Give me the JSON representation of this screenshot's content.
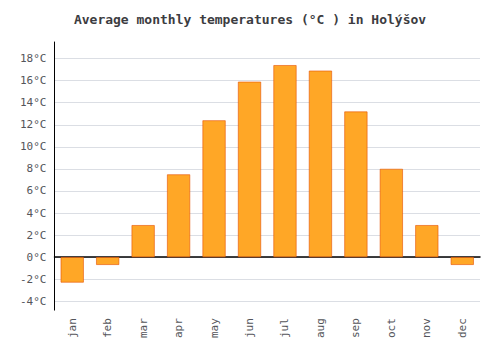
{
  "chart_data": {
    "type": "bar",
    "title": "Average monthly temperatures (°C ) in Holýšov",
    "categories": [
      "jan",
      "feb",
      "mar",
      "apr",
      "may",
      "jun",
      "jul",
      "aug",
      "sep",
      "oct",
      "nov",
      "dec"
    ],
    "values": [
      -2.3,
      -0.7,
      2.9,
      7.5,
      12.4,
      15.9,
      17.4,
      16.9,
      13.2,
      8.0,
      2.9,
      -0.7
    ],
    "color": "#FFA726",
    "ylim": [
      -4.8,
      19.5
    ],
    "yticks": [
      {
        "value": -4,
        "label": "-4°C"
      },
      {
        "value": -2,
        "label": "-2°C"
      },
      {
        "value": 0,
        "label": "0°C"
      },
      {
        "value": 2,
        "label": "2°C"
      },
      {
        "value": 4,
        "label": "4°C"
      },
      {
        "value": 6,
        "label": "6°C"
      },
      {
        "value": 8,
        "label": "8°C"
      },
      {
        "value": 10,
        "label": "10°C"
      },
      {
        "value": 12,
        "label": "12°C"
      },
      {
        "value": 14,
        "label": "14°C"
      },
      {
        "value": 16,
        "label": "16°C"
      },
      {
        "value": 18,
        "label": "18°C"
      }
    ],
    "grid": true
  }
}
